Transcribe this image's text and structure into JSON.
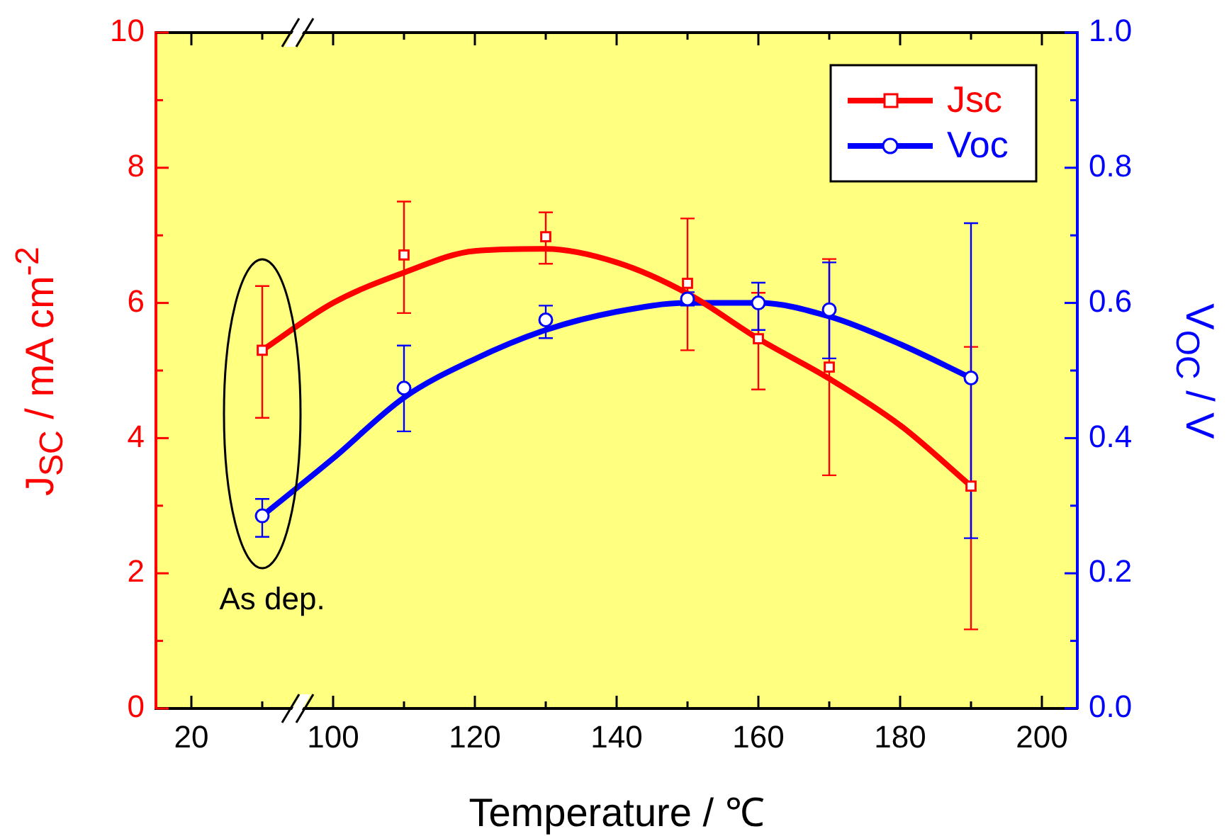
{
  "chart_data": {
    "type": "scatter",
    "xlabel": "Temperature / ℃",
    "ylabel": "J$_{SC}$ / mA cm$^{-2}$",
    "y2label": "V$_{OC}$ / V",
    "annotations": [
      "As dep."
    ],
    "legend": "top right",
    "categories": [
      "20",
      null,
      "100",
      null,
      "120",
      null,
      "140",
      null,
      "160",
      null,
      "180",
      null,
      "200"
    ],
    "ylim": [
      0,
      10
    ],
    "yticks": [
      0,
      {
        "value": 1,
        "label": null
      },
      2,
      {
        "value": 3,
        "label": null
      },
      4,
      {
        "value": 5,
        "label": null
      },
      6,
      {
        "value": 7,
        "label": null
      },
      8,
      {
        "value": 9,
        "label": null
      },
      10
    ],
    "y2lim": [
      0,
      1
    ],
    "y2ticks": [
      {
        "value": 0,
        "label": "0.0"
      },
      {
        "value": 0.1,
        "label": null
      },
      0.2,
      {
        "value": 0.3,
        "label": null
      },
      0.4,
      {
        "value": 0.5,
        "label": null
      },
      0.6,
      {
        "value": 0.7,
        "label": null
      },
      0.8,
      {
        "value": 0.9,
        "label": null
      },
      {
        "value": 1,
        "label": "1.0"
      }
    ],
    "series": [
      {
        "type": "scatter",
        "name": "Jsc",
        "color": "#ff0000",
        "marker": "square",
        "values": [
          null,
          5.3,
          null,
          6.71,
          null,
          6.98,
          null,
          6.29,
          5.47,
          5.05,
          null,
          3.29,
          null
        ],
        "errors": [
          null,
          [
            4.3,
            6.25
          ],
          null,
          [
            5.85,
            7.5
          ],
          null,
          [
            6.58,
            7.34
          ],
          null,
          [
            5.3,
            7.25
          ],
          [
            4.72,
            6.15
          ],
          [
            3.45,
            6.65
          ],
          null,
          [
            1.17,
            5.35
          ],
          null
        ]
      },
      {
        "type": "scatter",
        "name": "Voc",
        "color": "#0000ff",
        "marker": "circle",
        "axis": "y2",
        "values": [
          null,
          0.285,
          null,
          0.474,
          null,
          0.575,
          null,
          0.606,
          0.6,
          0.59,
          null,
          0.489,
          null
        ],
        "errors": [
          null,
          [
            0.254,
            0.31
          ],
          null,
          [
            0.41,
            0.537
          ],
          null,
          [
            0.548,
            0.596
          ],
          null,
          [
            0.596,
            0.616
          ],
          [
            0.56,
            0.63
          ],
          [
            0.518,
            0.66
          ],
          null,
          [
            0.252,
            0.718
          ],
          null
        ]
      },
      {
        "type": "line",
        "color": "#ff0000",
        "marker": "none",
        "values": [
          null,
          5.3,
          6.0,
          6.45,
          6.77,
          6.8,
          6.6,
          6.14,
          5.47,
          4.88,
          4.19,
          3.29,
          null
        ]
      },
      {
        "type": "line",
        "color": "#0000ff",
        "marker": "none",
        "axis": "y2",
        "values": [
          null,
          0.285,
          0.37,
          0.46,
          0.517,
          0.56,
          0.587,
          0.6,
          0.6,
          0.58,
          0.539,
          0.489,
          null
        ]
      }
    ]
  }
}
